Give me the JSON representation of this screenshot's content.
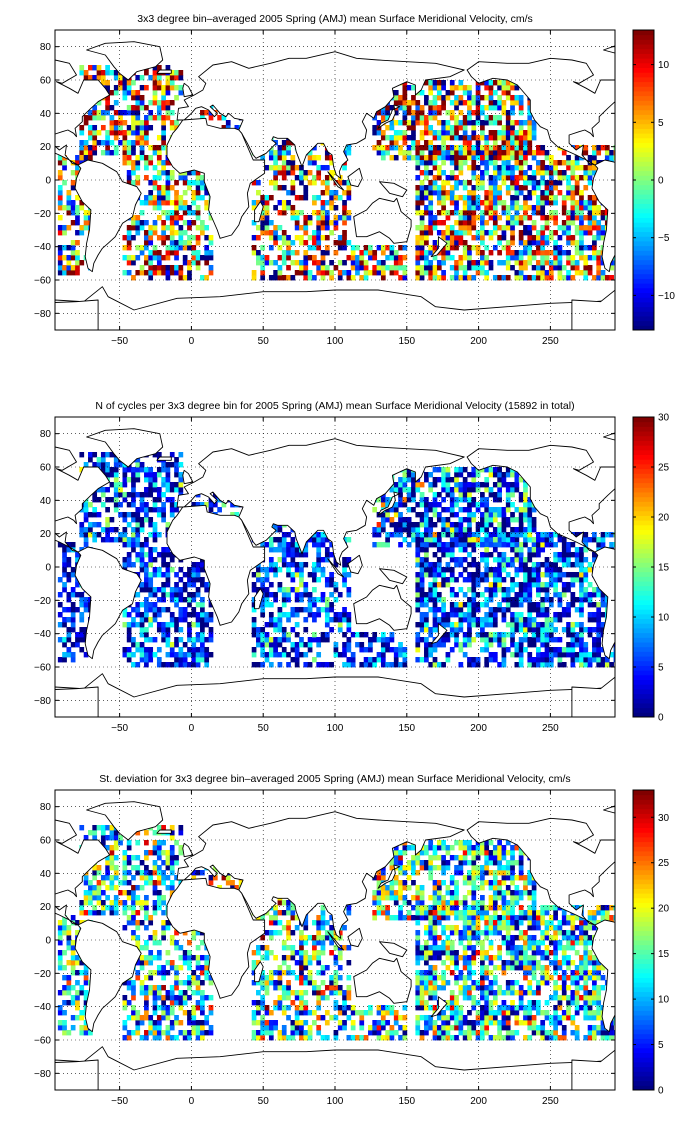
{
  "colormap": "jet",
  "chart_data": [
    {
      "type": "heatmap",
      "title": "3x3 degree bin–averaged 2005 Spring (AMJ) mean Surface Meridional Velocity, cm/s",
      "xlabel": "",
      "ylabel": "",
      "xlim": [
        -95,
        295
      ],
      "ylim": [
        -90,
        90
      ],
      "xticks": [
        -50,
        0,
        50,
        100,
        150,
        200,
        250
      ],
      "yticks": [
        80,
        60,
        40,
        20,
        0,
        -20,
        -40,
        -60,
        -80
      ],
      "grid": true,
      "cell_size_deg": 3,
      "colorbar": {
        "min": -13,
        "max": 13,
        "ticks": [
          10,
          5,
          0,
          -5,
          -10
        ]
      },
      "regions": [
        {
          "lon": [
            -80,
            -8
          ],
          "lat": [
            15,
            68
          ],
          "density": 0.65,
          "mean": 2,
          "spread": 9
        },
        {
          "lon": [
            -50,
            15
          ],
          "lat": [
            -60,
            15
          ],
          "density": 0.6,
          "mean": 0,
          "spread": 9
        },
        {
          "lon": [
            -95,
            -70
          ],
          "lat": [
            -58,
            15
          ],
          "density": 0.6,
          "mean": 0,
          "spread": 9
        },
        {
          "lon": [
            0,
            40
          ],
          "lat": [
            30,
            46
          ],
          "density": 0.45,
          "mean": 1,
          "spread": 8
        },
        {
          "lon": [
            40,
            110
          ],
          "lat": [
            -60,
            25
          ],
          "density": 0.55,
          "mean": 0,
          "spread": 10
        },
        {
          "lon": [
            110,
            150
          ],
          "lat": [
            -60,
            -40
          ],
          "density": 0.6,
          "mean": 2,
          "spread": 9
        },
        {
          "lon": [
            125,
            240
          ],
          "lat": [
            10,
            58
          ],
          "density": 0.7,
          "mean": 2,
          "spread": 10
        },
        {
          "lon": [
            155,
            295
          ],
          "lat": [
            -62,
            20
          ],
          "density": 0.7,
          "mean": 1,
          "spread": 9
        }
      ]
    },
    {
      "type": "heatmap",
      "title": "N of cycles per 3x3 degree bin for 2005 Spring (AMJ) mean Surface Meridional Velocity (15892 in total)",
      "xlabel": "",
      "ylabel": "",
      "xlim": [
        -95,
        295
      ],
      "ylim": [
        -90,
        90
      ],
      "xticks": [
        -50,
        0,
        50,
        100,
        150,
        200,
        250
      ],
      "yticks": [
        80,
        60,
        40,
        20,
        0,
        -20,
        -40,
        -60,
        -80
      ],
      "grid": true,
      "cell_size_deg": 3,
      "total_cycles": 15892,
      "colorbar": {
        "min": 0,
        "max": 30,
        "ticks": [
          30,
          25,
          20,
          15,
          10,
          5,
          0
        ]
      },
      "regions": [
        {
          "lon": [
            -80,
            -8
          ],
          "lat": [
            15,
            68
          ],
          "density": 0.65,
          "mean": 5,
          "spread": 6
        },
        {
          "lon": [
            -50,
            15
          ],
          "lat": [
            -60,
            15
          ],
          "density": 0.6,
          "mean": 4,
          "spread": 5
        },
        {
          "lon": [
            -95,
            -70
          ],
          "lat": [
            -58,
            15
          ],
          "density": 0.6,
          "mean": 4,
          "spread": 5
        },
        {
          "lon": [
            0,
            40
          ],
          "lat": [
            30,
            46
          ],
          "density": 0.45,
          "mean": 5,
          "spread": 6
        },
        {
          "lon": [
            40,
            110
          ],
          "lat": [
            -60,
            25
          ],
          "density": 0.55,
          "mean": 5,
          "spread": 5
        },
        {
          "lon": [
            110,
            150
          ],
          "lat": [
            -60,
            -40
          ],
          "density": 0.6,
          "mean": 4,
          "spread": 4
        },
        {
          "lon": [
            125,
            240
          ],
          "lat": [
            10,
            58
          ],
          "density": 0.7,
          "mean": 6,
          "spread": 7
        },
        {
          "lon": [
            155,
            295
          ],
          "lat": [
            -62,
            20
          ],
          "density": 0.7,
          "mean": 5,
          "spread": 6
        }
      ]
    },
    {
      "type": "heatmap",
      "title": "St. deviation for 3x3 degree bin–averaged 2005 Spring (AMJ) mean Surface Meridional Velocity, cm/s",
      "xlabel": "",
      "ylabel": "",
      "xlim": [
        -95,
        295
      ],
      "ylim": [
        -90,
        90
      ],
      "xticks": [
        -50,
        0,
        50,
        100,
        150,
        200,
        250
      ],
      "yticks": [
        80,
        60,
        40,
        20,
        0,
        -20,
        -40,
        -60,
        -80
      ],
      "grid": true,
      "cell_size_deg": 3,
      "colorbar": {
        "min": 0,
        "max": 33,
        "ticks": [
          30,
          25,
          20,
          15,
          10,
          5,
          0
        ]
      },
      "regions": [
        {
          "lon": [
            -80,
            -8
          ],
          "lat": [
            15,
            68
          ],
          "density": 0.65,
          "mean": 13,
          "spread": 8
        },
        {
          "lon": [
            -50,
            15
          ],
          "lat": [
            -60,
            15
          ],
          "density": 0.6,
          "mean": 12,
          "spread": 8
        },
        {
          "lon": [
            -95,
            -70
          ],
          "lat": [
            -58,
            15
          ],
          "density": 0.6,
          "mean": 11,
          "spread": 7
        },
        {
          "lon": [
            0,
            40
          ],
          "lat": [
            30,
            46
          ],
          "density": 0.45,
          "mean": 14,
          "spread": 9
        },
        {
          "lon": [
            40,
            110
          ],
          "lat": [
            -60,
            25
          ],
          "density": 0.55,
          "mean": 14,
          "spread": 9
        },
        {
          "lon": [
            110,
            150
          ],
          "lat": [
            -60,
            -40
          ],
          "density": 0.6,
          "mean": 14,
          "spread": 8
        },
        {
          "lon": [
            125,
            240
          ],
          "lat": [
            10,
            58
          ],
          "density": 0.7,
          "mean": 13,
          "spread": 8
        },
        {
          "lon": [
            155,
            295
          ],
          "lat": [
            -62,
            20
          ],
          "density": 0.7,
          "mean": 12,
          "spread": 8
        }
      ]
    }
  ]
}
